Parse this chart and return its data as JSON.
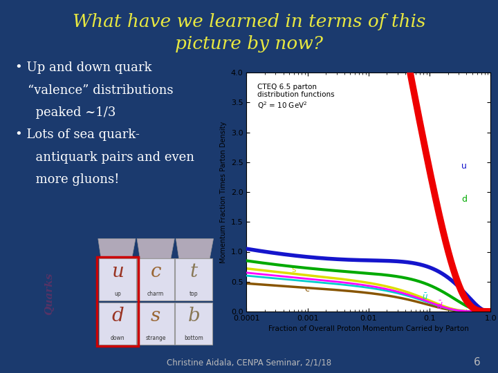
{
  "bg_color": "#1b3a6e",
  "title_line1": "What have we learned in terms of this",
  "title_line2": "picture by now?",
  "title_color": "#e8e840",
  "title_fontsize": 19,
  "bullet_color": "#ffffff",
  "bullet_fontsize": 13,
  "footer_text": "Christine Aidala, CENPA Seminar, 2/1/18",
  "footer_color": "#bbbbbb",
  "page_number": "6",
  "plot_annotation": "CTEQ 6.5 parton\ndistribution functions\nQ$^2$ = 10 GeV$^2$",
  "ylabel": "Momentum Fraction Times Parton Density",
  "xlabel": "Fraction of Overall Proton Momentum Carried by Parton",
  "xlim": [
    0.0001,
    1.0
  ],
  "ylim": [
    0,
    4.0
  ],
  "yticks": [
    0,
    0.5,
    1.0,
    1.5,
    2.0,
    2.5,
    3.0,
    3.5,
    4.0
  ],
  "gluon_color": "#ee0000",
  "u_color": "#1515cc",
  "d_color": "#00aa00",
  "ubar_color": "#00cccc",
  "dbar_color": "#ff00ff",
  "s_color": "#dddd00",
  "c_color": "#885500",
  "table_bg": "#aaaacc",
  "table_cell_bg": "#ddddee",
  "table_letter_colors": [
    "#aa3322",
    "#aa5500",
    "#887766"
  ],
  "table_border_color": "#cc0000"
}
